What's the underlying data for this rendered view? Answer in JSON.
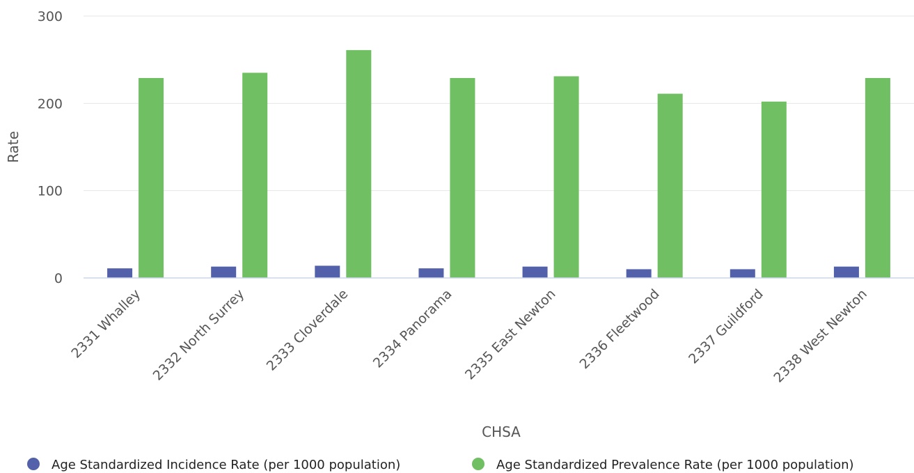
{
  "chart_data": {
    "type": "bar",
    "categories": [
      "2331 Whalley",
      "2332 North Surrey",
      "2333 Cloverdale",
      "2334 Panorama",
      "2335 East Newton",
      "2336 Fleetwood",
      "2337 Guildford",
      "2338 West Newton"
    ],
    "series": [
      {
        "name": "Age Standardized Incidence Rate (per 1000 population)",
        "color": "#5361ab",
        "values": [
          11,
          13,
          14,
          11,
          13,
          10,
          10,
          13
        ]
      },
      {
        "name": "Age Standardized Prevalence Rate (per 1000 population)",
        "color": "#70bf63",
        "values": [
          229,
          235,
          261,
          229,
          231,
          211,
          202,
          229
        ]
      }
    ],
    "xlabel": "CHSA",
    "ylabel": "Rate",
    "ylim": [
      0,
      300
    ],
    "yticks": [
      "0",
      "100",
      "200",
      "300"
    ],
    "grid": true,
    "legend": "bottom"
  }
}
